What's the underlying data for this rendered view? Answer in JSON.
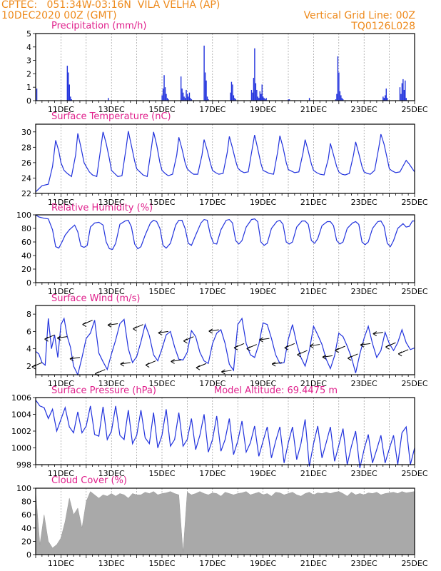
{
  "header": {
    "line1": "CPTEC:   051:34W-03:16N  VILA VELHA (AP)",
    "line2": "10DEC2020 00Z (GMT)",
    "right1": "Vertical Grid Line: 00Z",
    "right2": "TQ0126L028"
  },
  "colors": {
    "series": "#2233dd",
    "bars": "#2233dd",
    "cloud": "#a9a9a9",
    "title": "#e0208c",
    "header": "#ee8a1c"
  },
  "x_axis_ticks": [
    "11DEC",
    "13DEC",
    "15DEC",
    "17DEC",
    "19DEC",
    "21DEC",
    "23DEC",
    "25DEC"
  ],
  "chart_data": [
    {
      "type": "bar",
      "title": "Precipitation  (mm/h)",
      "x_unit": "hours since 10DEC2020 00Z",
      "ylim": [
        0,
        5
      ],
      "yticks": [
        0,
        1,
        2,
        3,
        4,
        5
      ],
      "x": [
        1,
        30,
        31,
        32,
        33,
        34,
        69,
        120,
        121,
        122,
        123,
        124,
        125,
        126,
        138,
        139,
        140,
        141,
        142,
        143,
        144,
        145,
        146,
        147,
        148,
        160,
        161,
        162,
        163,
        164,
        185,
        186,
        187,
        188,
        189,
        190,
        205,
        206,
        207,
        208,
        209,
        210,
        211,
        212,
        213,
        214,
        215,
        216,
        217,
        218,
        219,
        240,
        241,
        260,
        285,
        286,
        287,
        288,
        289,
        290,
        291,
        292,
        330,
        331,
        332,
        333,
        334,
        346,
        347,
        348,
        349,
        350,
        351,
        352
      ],
      "values": [
        0.9,
        2.6,
        2.1,
        1.2,
        0.3,
        0.1,
        0.2,
        0.4,
        0.9,
        1.9,
        1.0,
        0.5,
        0.2,
        0.1,
        1.8,
        0.9,
        0.6,
        0.3,
        0.2,
        0.8,
        0.5,
        0.3,
        0.6,
        0.2,
        0.1,
        4.1,
        2.1,
        1.5,
        0.3,
        0.1,
        0.6,
        1.4,
        1.2,
        0.4,
        0.2,
        0.1,
        0.8,
        0.6,
        1.7,
        3.9,
        1.3,
        0.8,
        0.3,
        0.2,
        0.7,
        0.5,
        1.2,
        0.3,
        0.2,
        0.1,
        0.2,
        0.1,
        0.1,
        0.2,
        0.1,
        0.5,
        3.3,
        2.1,
        0.7,
        0.4,
        0.2,
        0.1,
        0.3,
        0.2,
        0.4,
        0.9,
        0.2,
        1.0,
        0.5,
        1.3,
        1.6,
        0.8,
        1.5,
        0.2
      ]
    },
    {
      "type": "line",
      "title": "Surface Temperature (nC)",
      "x_unit": "hours since 10DEC2020 00Z",
      "ylim": [
        22,
        31
      ],
      "yticks": [
        22,
        24,
        26,
        28,
        30
      ],
      "x": [
        0,
        6,
        12,
        16,
        19,
        22,
        24,
        27,
        30,
        34,
        38,
        40,
        43,
        46,
        48,
        51,
        54,
        58,
        62,
        64,
        67,
        70,
        72,
        75,
        78,
        82,
        86,
        88,
        91,
        94,
        96,
        99,
        102,
        106,
        110,
        112,
        115,
        118,
        120,
        123,
        126,
        130,
        134,
        136,
        139,
        142,
        144,
        147,
        150,
        154,
        158,
        160,
        163,
        166,
        168,
        171,
        174,
        178,
        182,
        184,
        187,
        190,
        192,
        195,
        198,
        202,
        206,
        208,
        211,
        214,
        216,
        219,
        222,
        226,
        230,
        232,
        235,
        238,
        240,
        243,
        246,
        250,
        254,
        256,
        259,
        262,
        264,
        267,
        270,
        274,
        278,
        280,
        283,
        286,
        288,
        291,
        294,
        298,
        302,
        304,
        307,
        310,
        312,
        315,
        318,
        322,
        326,
        328,
        331,
        334,
        336,
        339,
        342,
        346,
        350,
        352,
        355,
        358,
        360
      ],
      "values": [
        22.2,
        23.0,
        23.2,
        25.5,
        28.9,
        27.5,
        26.0,
        25.0,
        24.6,
        24.2,
        27.0,
        29.8,
        28.0,
        26.0,
        25.5,
        24.8,
        24.4,
        24.2,
        28.0,
        30.0,
        28.5,
        26.5,
        25.0,
        24.6,
        24.2,
        24.3,
        28.0,
        30.1,
        28.2,
        26.2,
        25.2,
        24.8,
        24.4,
        24.2,
        28.0,
        30.0,
        28.3,
        26.0,
        25.0,
        24.6,
        24.3,
        24.5,
        27.0,
        29.3,
        27.8,
        26.0,
        25.2,
        24.8,
        24.5,
        24.5,
        27.0,
        29.0,
        27.6,
        25.9,
        25.0,
        24.7,
        24.5,
        24.6,
        27.3,
        29.4,
        27.9,
        26.2,
        25.3,
        24.9,
        24.7,
        24.8,
        28.0,
        29.6,
        27.8,
        25.9,
        25.0,
        24.8,
        24.6,
        24.5,
        27.5,
        29.5,
        28.0,
        26.0,
        25.1,
        24.9,
        24.7,
        24.8,
        27.3,
        29.0,
        27.5,
        25.8,
        25.0,
        24.7,
        24.5,
        24.4,
        26.5,
        28.5,
        27.0,
        25.5,
        24.8,
        24.5,
        24.4,
        24.6,
        27.0,
        28.7,
        27.2,
        25.5,
        24.8,
        24.6,
        24.5,
        25.0,
        28.0,
        29.7,
        28.4,
        26.5,
        25.2,
        24.9,
        24.7,
        24.8,
        25.8,
        26.3,
        25.8,
        25.2,
        24.8
      ]
    },
    {
      "type": "line",
      "title": "Relative Humidity (%)",
      "x_unit": "hours since 10DEC2020 00Z",
      "ylim": [
        0,
        100
      ],
      "yticks": [
        0,
        20,
        40,
        60,
        80,
        100
      ],
      "x": [
        0,
        3,
        8,
        12,
        16,
        19,
        22,
        25,
        28,
        32,
        37,
        40,
        43,
        46,
        49,
        52,
        56,
        60,
        64,
        67,
        70,
        73,
        76,
        80,
        85,
        88,
        91,
        94,
        97,
        100,
        104,
        109,
        112,
        115,
        118,
        121,
        124,
        128,
        133,
        136,
        139,
        142,
        145,
        148,
        152,
        157,
        160,
        163,
        166,
        169,
        172,
        176,
        181,
        184,
        187,
        190,
        193,
        196,
        200,
        205,
        208,
        211,
        214,
        217,
        220,
        224,
        229,
        232,
        235,
        238,
        241,
        244,
        248,
        253,
        256,
        259,
        262,
        265,
        268,
        272,
        277,
        280,
        283,
        286,
        289,
        292,
        296,
        301,
        304,
        307,
        310,
        313,
        316,
        320,
        325,
        328,
        331,
        334,
        337,
        340,
        344,
        349,
        352,
        355,
        358,
        360
      ],
      "values": [
        100,
        97,
        95,
        94,
        78,
        53,
        51,
        60,
        70,
        78,
        85,
        75,
        54,
        52,
        55,
        82,
        88,
        89,
        85,
        60,
        50,
        49,
        58,
        86,
        91,
        92,
        82,
        57,
        50,
        53,
        70,
        88,
        92,
        90,
        80,
        55,
        51,
        58,
        85,
        92,
        92,
        80,
        58,
        55,
        70,
        88,
        93,
        92,
        70,
        58,
        57,
        78,
        92,
        93,
        88,
        62,
        57,
        62,
        82,
        93,
        94,
        90,
        60,
        55,
        58,
        80,
        90,
        92,
        86,
        60,
        57,
        60,
        82,
        91,
        91,
        86,
        62,
        58,
        65,
        84,
        90,
        90,
        84,
        62,
        57,
        60,
        80,
        88,
        90,
        86,
        60,
        56,
        60,
        80,
        90,
        91,
        83,
        58,
        53,
        62,
        80,
        87,
        82,
        83,
        91,
        91
      ]
    },
    {
      "type": "line",
      "title": "Surface Wind (m/s)",
      "x_unit": "hours since 10DEC2020 00Z",
      "ylim": [
        1,
        9
      ],
      "yticks": [
        2,
        4,
        6,
        8
      ],
      "x": [
        0,
        3,
        6,
        9,
        12,
        15,
        18,
        21,
        24,
        27,
        30,
        33,
        36,
        40,
        44,
        48,
        52,
        56,
        60,
        64,
        68,
        72,
        76,
        80,
        84,
        88,
        92,
        96,
        100,
        104,
        108,
        112,
        116,
        120,
        124,
        128,
        132,
        136,
        140,
        144,
        148,
        152,
        156,
        160,
        164,
        168,
        172,
        176,
        180,
        184,
        188,
        192,
        196,
        200,
        204,
        208,
        212,
        216,
        220,
        224,
        228,
        232,
        236,
        240,
        244,
        248,
        252,
        256,
        260,
        264,
        268,
        272,
        276,
        280,
        284,
        288,
        292,
        296,
        300,
        304,
        308,
        312,
        316,
        320,
        324,
        328,
        332,
        336,
        340,
        344,
        348,
        352,
        356,
        360
      ],
      "values": [
        3.7,
        3.4,
        2.4,
        2.1,
        7.5,
        4.0,
        5.6,
        3.0,
        6.8,
        7.5,
        5.4,
        4.2,
        2.0,
        1.0,
        3.0,
        5.2,
        5.8,
        7.3,
        3.5,
        2.5,
        1.6,
        3.4,
        5.0,
        6.9,
        7.4,
        4.0,
        2.4,
        3.1,
        4.8,
        6.8,
        5.5,
        3.3,
        2.6,
        4.0,
        5.6,
        6.0,
        4.2,
        2.8,
        2.7,
        3.6,
        6.1,
        5.4,
        3.6,
        2.6,
        2.3,
        4.6,
        5.8,
        6.2,
        4.6,
        2.2,
        1.5,
        6.8,
        7.5,
        4.6,
        3.3,
        3.0,
        4.5,
        7.0,
        6.8,
        5.2,
        3.3,
        2.3,
        2.4,
        5.1,
        6.8,
        4.6,
        3.0,
        2.0,
        3.8,
        6.6,
        5.6,
        4.5,
        2.8,
        1.7,
        3.2,
        5.8,
        5.4,
        4.3,
        3.0,
        1.2,
        3.4,
        5.2,
        6.6,
        4.6,
        3.0,
        3.8,
        5.9,
        4.6,
        3.8,
        4.7,
        6.2,
        4.7,
        3.9,
        4.1
      ]
    },
    {
      "type": "line",
      "title": "Surface Pressure (hPa)",
      "annotation": "Model Altitude: 69.4475 m",
      "x_unit": "hours since 10DEC2020 00Z",
      "ylim": [
        998,
        1006
      ],
      "yticks": [
        998,
        1000,
        1002,
        1004,
        1006
      ],
      "x": [
        0,
        4,
        8,
        12,
        16,
        20,
        24,
        28,
        32,
        36,
        40,
        44,
        48,
        52,
        56,
        60,
        64,
        68,
        72,
        76,
        80,
        84,
        88,
        92,
        96,
        100,
        104,
        108,
        112,
        116,
        120,
        124,
        128,
        132,
        136,
        140,
        144,
        148,
        152,
        156,
        160,
        164,
        168,
        172,
        176,
        180,
        184,
        188,
        192,
        196,
        200,
        204,
        208,
        212,
        216,
        220,
        224,
        228,
        232,
        236,
        240,
        244,
        248,
        252,
        256,
        260,
        264,
        268,
        272,
        276,
        280,
        284,
        288,
        292,
        296,
        300,
        304,
        308,
        312,
        316,
        320,
        324,
        328,
        332,
        336,
        340,
        344,
        348,
        352,
        356,
        360
      ],
      "values": [
        1005.7,
        1005.0,
        1004.8,
        1003.5,
        1004.6,
        1002.0,
        1003.4,
        1004.8,
        1002.5,
        1001.8,
        1004.3,
        1001.8,
        1002.6,
        1005.0,
        1001.6,
        1001.4,
        1004.9,
        1001.0,
        1002.0,
        1005.0,
        1001.5,
        1001.0,
        1004.5,
        1000.5,
        1001.5,
        1004.5,
        1001.2,
        1000.5,
        1004.2,
        1000.0,
        1001.5,
        1004.6,
        1000.2,
        1001.0,
        1004.2,
        1000.2,
        1001.0,
        1003.5,
        999.8,
        1001.5,
        1004.0,
        999.5,
        1001.0,
        1003.8,
        999.6,
        1001.0,
        1003.5,
        999.2,
        1000.8,
        1003.2,
        999.5,
        1000.6,
        1002.6,
        999.0,
        1000.8,
        1002.5,
        998.8,
        1000.8,
        1002.5,
        998.2,
        1000.6,
        1002.5,
        998.6,
        1000.5,
        1003.4,
        997.8,
        1000.5,
        1002.6,
        998.8,
        1000.6,
        1002.5,
        998.4,
        1000.3,
        1002.3,
        998.0,
        1000.2,
        1002.0,
        997.6,
        999.8,
        1001.6,
        998.2,
        999.8,
        1001.5,
        998.2,
        999.9,
        1001.5,
        998.0,
        1001.8,
        1002.5,
        998.0,
        1000.0
      ]
    },
    {
      "type": "area",
      "title": "Cloud Cover (%)",
      "x_unit": "hours since 10DEC2020 00Z",
      "ylim": [
        0,
        100
      ],
      "yticks": [
        0,
        20,
        40,
        60,
        80,
        100
      ],
      "x": [
        0,
        4,
        8,
        12,
        16,
        20,
        24,
        28,
        32,
        36,
        40,
        44,
        48,
        52,
        56,
        60,
        64,
        68,
        72,
        76,
        80,
        84,
        88,
        92,
        96,
        100,
        104,
        108,
        112,
        116,
        120,
        124,
        128,
        132,
        136,
        140,
        144,
        148,
        152,
        156,
        160,
        164,
        168,
        172,
        176,
        180,
        184,
        188,
        192,
        196,
        200,
        204,
        208,
        212,
        216,
        220,
        224,
        228,
        232,
        236,
        240,
        244,
        248,
        252,
        256,
        260,
        264,
        268,
        272,
        276,
        280,
        284,
        288,
        292,
        296,
        300,
        304,
        308,
        312,
        316,
        320,
        324,
        328,
        332,
        336,
        340,
        344,
        348,
        352,
        356,
        360
      ],
      "values": [
        95,
        15,
        60,
        20,
        10,
        15,
        25,
        50,
        85,
        60,
        70,
        40,
        80,
        95,
        90,
        85,
        90,
        88,
        92,
        88,
        92,
        90,
        85,
        92,
        90,
        90,
        94,
        92,
        95,
        90,
        92,
        93,
        95,
        92,
        90,
        3,
        94,
        90,
        92,
        95,
        92,
        90,
        93,
        92,
        88,
        94,
        92,
        90,
        92,
        93,
        95,
        90,
        92,
        94,
        90,
        92,
        88,
        94,
        93,
        90,
        92,
        94,
        90,
        88,
        92,
        94,
        90,
        93,
        92,
        94,
        92,
        94,
        95,
        92,
        88,
        94,
        90,
        92,
        90,
        93,
        92,
        94,
        90,
        92,
        93,
        94,
        92,
        95,
        93,
        94,
        95
      ]
    }
  ]
}
